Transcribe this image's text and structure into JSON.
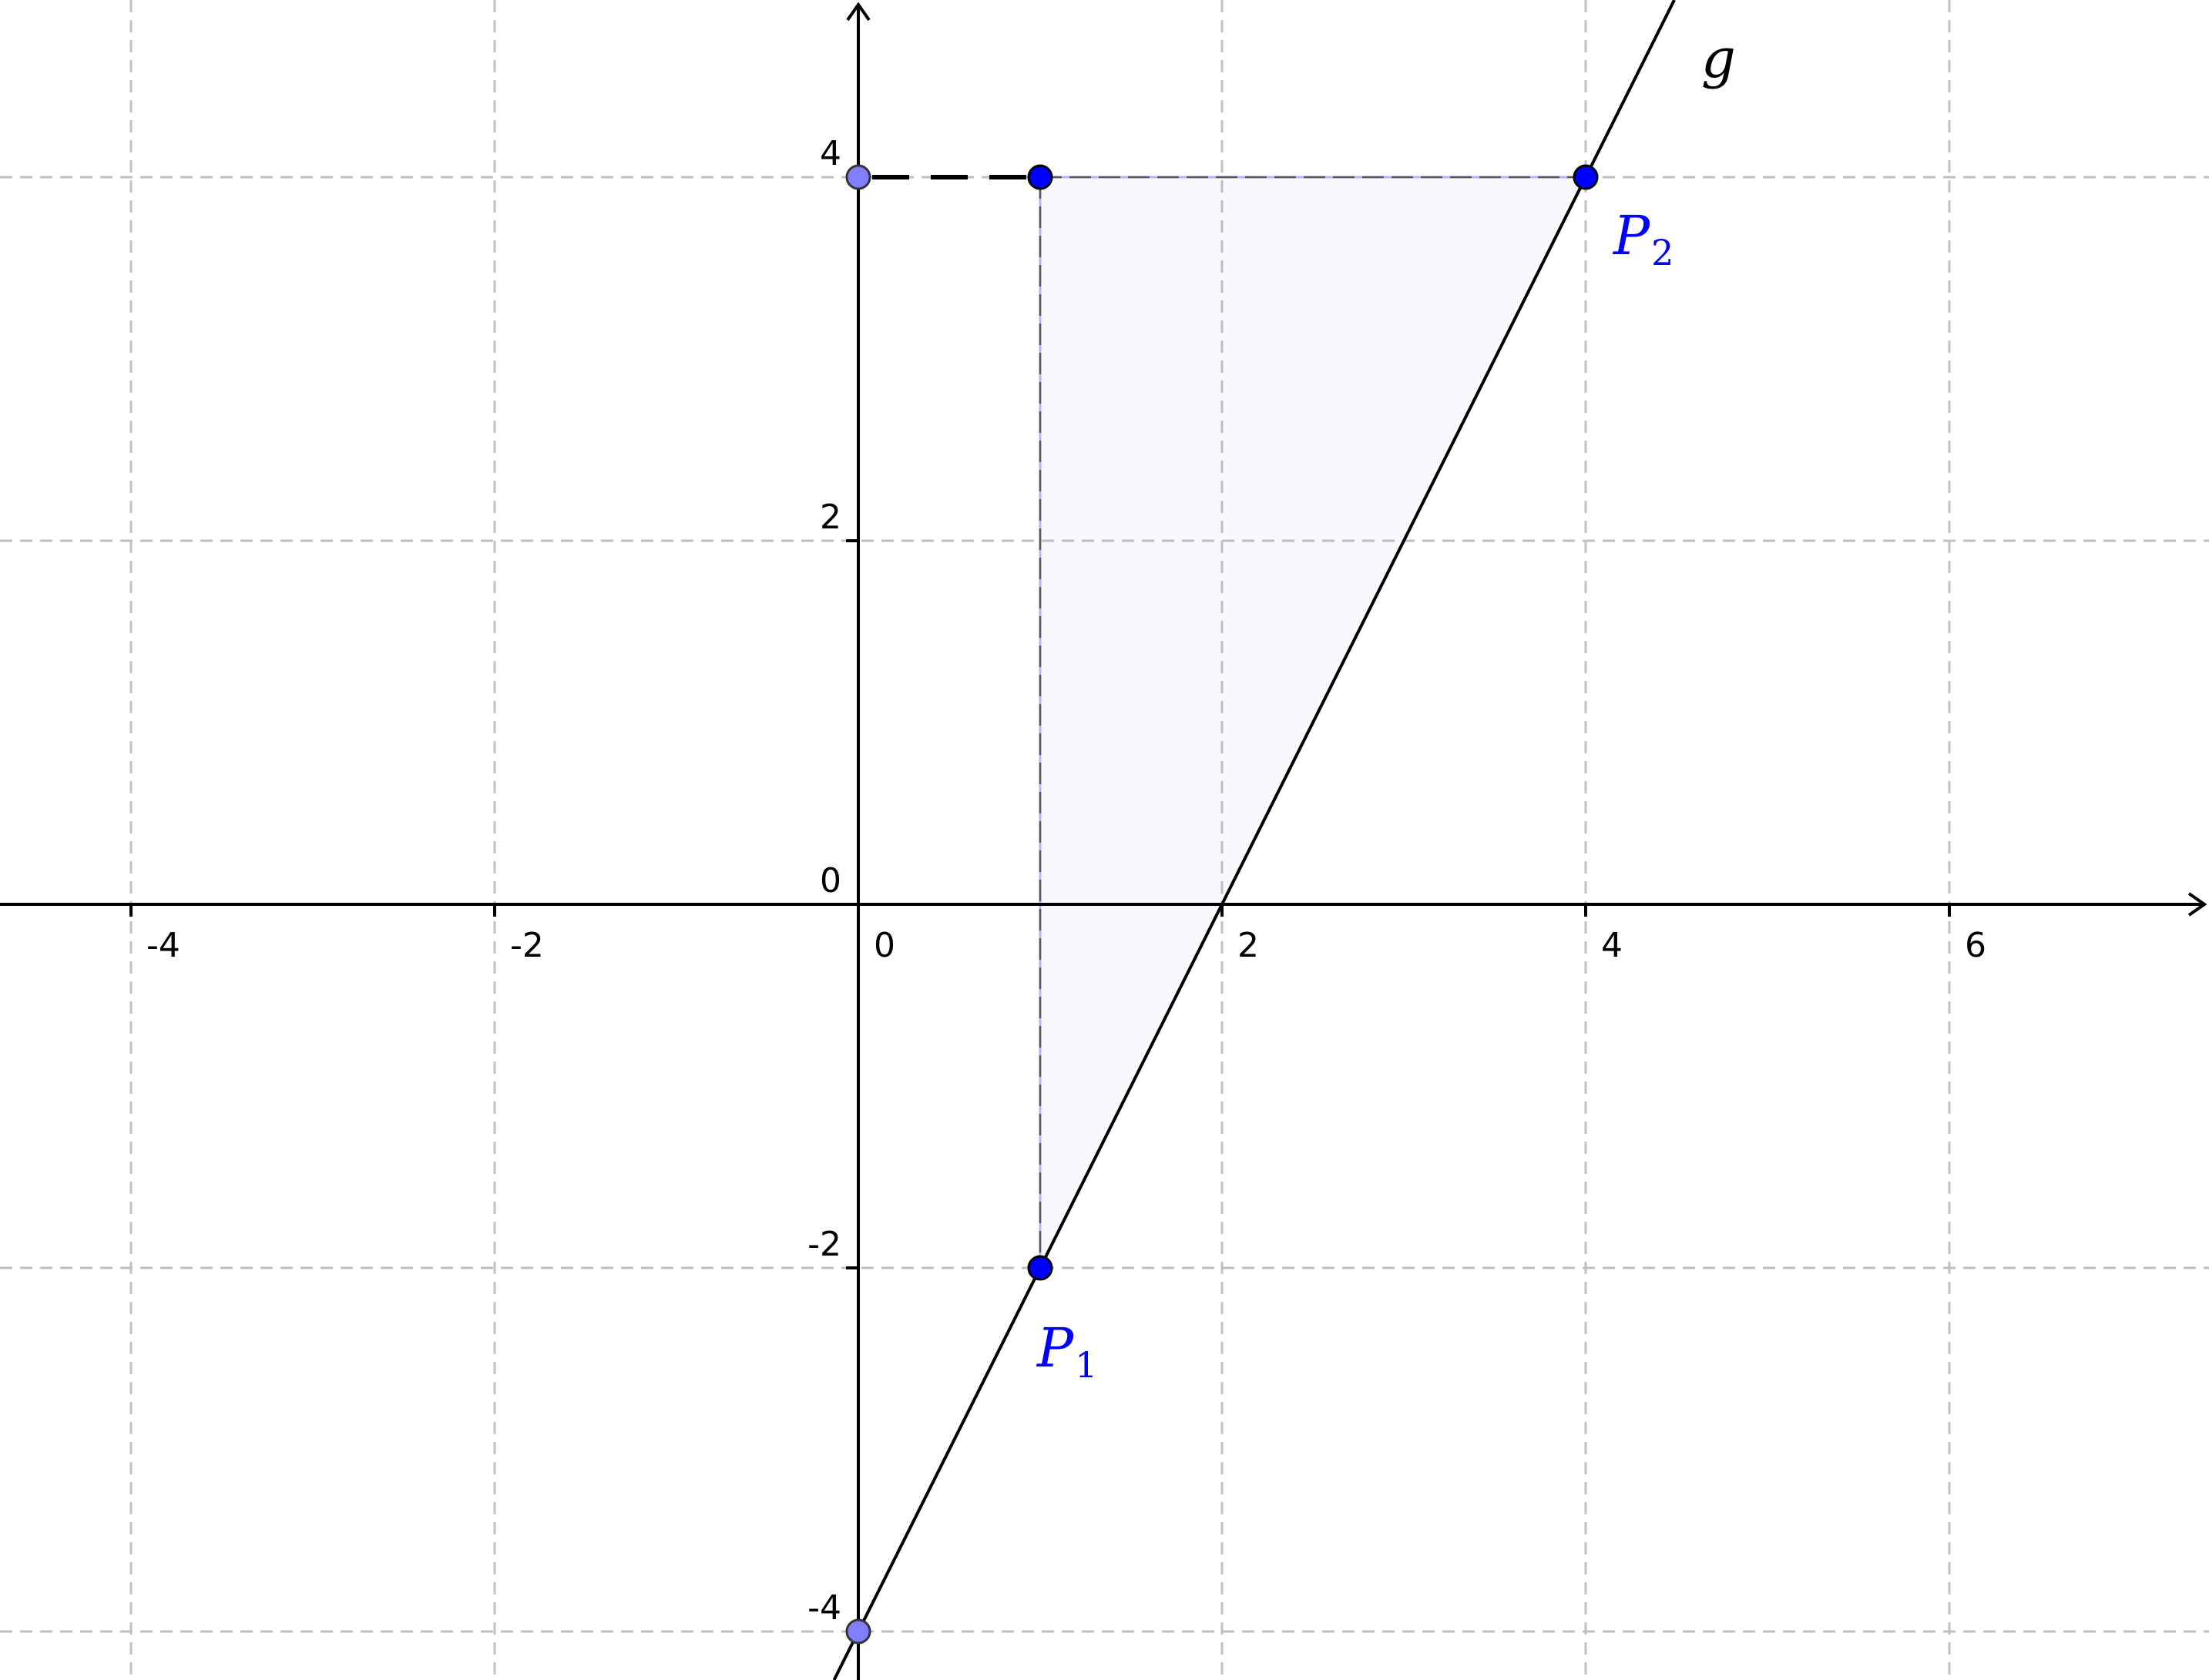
{
  "diagram": {
    "x_ticks": [
      {
        "value": -4,
        "label": "-4"
      },
      {
        "value": -2,
        "label": "-2"
      },
      {
        "value": 0,
        "label": "0"
      },
      {
        "value": 2,
        "label": "2"
      },
      {
        "value": 4,
        "label": "4"
      },
      {
        "value": 6,
        "label": "6"
      }
    ],
    "y_ticks": [
      {
        "value": -4,
        "label": "-4"
      },
      {
        "value": -2,
        "label": "-2"
      },
      {
        "value": 0,
        "label": "0"
      },
      {
        "value": 2,
        "label": "2"
      },
      {
        "value": 4,
        "label": "4"
      }
    ],
    "grid": true,
    "line": {
      "name": "g",
      "through": [
        [
          1,
          -2
        ],
        [
          4,
          4
        ]
      ]
    },
    "points": [
      {
        "id": "P1",
        "letter": "P",
        "subscript": "1",
        "x": 1,
        "y": -2,
        "style": "main"
      },
      {
        "id": "P2",
        "letter": "P",
        "subscript": "2",
        "x": 4,
        "y": 4,
        "style": "main"
      },
      {
        "id": "corner",
        "x": 1,
        "y": 4,
        "style": "main"
      },
      {
        "id": "y-axis-top",
        "x": 0,
        "y": 4,
        "style": "aux"
      },
      {
        "id": "y-intercept",
        "x": 0,
        "y": -4,
        "style": "aux"
      }
    ],
    "triangle": [
      [
        1,
        -2
      ],
      [
        4,
        4
      ],
      [
        1,
        4
      ]
    ]
  }
}
